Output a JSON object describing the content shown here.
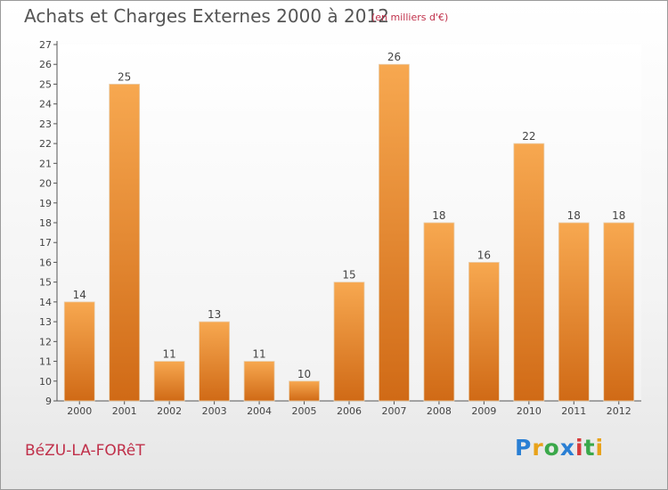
{
  "header": {
    "title": "Achats et Charges Externes 2000 à 2012",
    "subtitle": "(en milliers d'€)"
  },
  "footer": {
    "commune": "BéZU-LA-FORêT",
    "logo": "Proxiti",
    "logo_colors": [
      "#2a7fd4",
      "#e8a21a",
      "#3aa84a",
      "#2a7fd4",
      "#d63a3a",
      "#3aa84a",
      "#e8a21a"
    ]
  },
  "chart_data": {
    "type": "bar",
    "title": "Achats et Charges Externes 2000 à 2012",
    "subtitle": "(en milliers d'€)",
    "categories": [
      "2000",
      "2001",
      "2002",
      "2003",
      "2004",
      "2005",
      "2006",
      "2007",
      "2008",
      "2009",
      "2010",
      "2011",
      "2012"
    ],
    "values": [
      14,
      25,
      11,
      13,
      11,
      10,
      15,
      26,
      18,
      16,
      22,
      18,
      18
    ],
    "data_labels": [
      "14",
      "25",
      "11",
      "13",
      "11",
      "10",
      "15",
      "26",
      "18",
      "16",
      "22",
      "18",
      "18"
    ],
    "ylim": [
      9,
      27
    ],
    "yticks": [
      9,
      10,
      11,
      12,
      13,
      14,
      15,
      16,
      17,
      18,
      19,
      20,
      21,
      22,
      23,
      24,
      25,
      26,
      27
    ],
    "ytick_labels": [
      "9",
      "10",
      "11",
      "12",
      "13",
      "14",
      "15",
      "16",
      "17",
      "18",
      "19",
      "20",
      "21",
      "22",
      "23",
      "24",
      "25",
      "26",
      "27"
    ],
    "xlabel": "",
    "ylabel": "",
    "grid": false,
    "legend": false,
    "bar_color_top": "#f7a850",
    "bar_color_bottom": "#d06a16"
  }
}
